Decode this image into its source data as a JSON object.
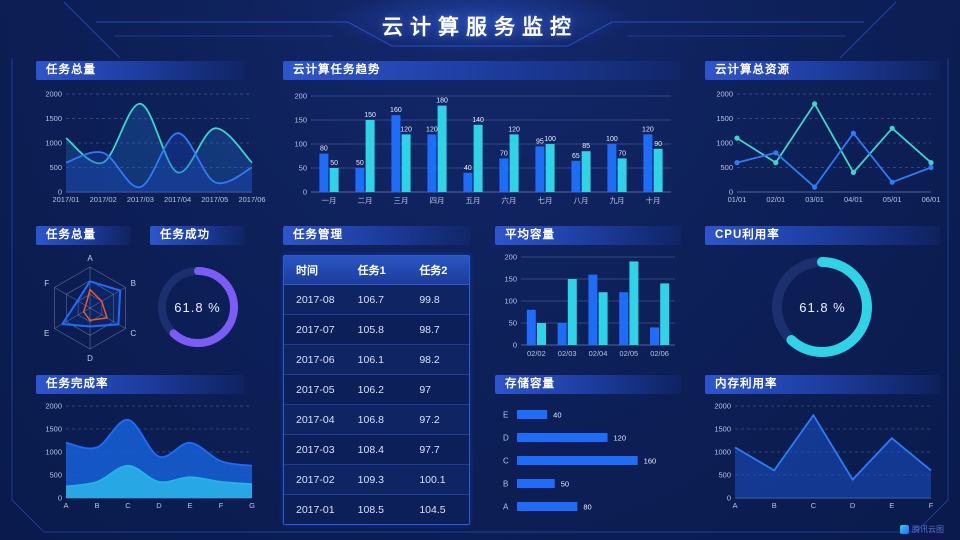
{
  "header": {
    "title": "云计算服务监控"
  },
  "watermark": {
    "label": "腾讯云图"
  },
  "colors": {
    "accent_blue": "#1f6cf9",
    "accent_cyan": "#2fd3e6",
    "accent_teal": "#3bd6c9",
    "accent_purple": "#7b5cf7",
    "accent_orange": "#f2552c",
    "panel_title_bg": "#2e55cc",
    "background": "#0d2058",
    "frame_line": "#2b4fd4"
  },
  "panels": {
    "task_total_top": {
      "title": "任务总量"
    },
    "task_trend": {
      "title": "云计算任务趋势"
    },
    "total_resources": {
      "title": "云计算总资源"
    },
    "task_radar": {
      "title": "任务总量"
    },
    "task_success": {
      "title": "任务成功"
    },
    "task_management": {
      "title": "任务管理",
      "columns": [
        "时间",
        "任务1",
        "任务2"
      ],
      "rows": [
        [
          "2017-08",
          "106.7",
          "99.8"
        ],
        [
          "2017-07",
          "105.8",
          "98.7"
        ],
        [
          "2017-06",
          "106.1",
          "98.2"
        ],
        [
          "2017-05",
          "106.2",
          "97"
        ],
        [
          "2017-04",
          "106.8",
          "97.2"
        ],
        [
          "2017-03",
          "108.4",
          "97.7"
        ],
        [
          "2017-02",
          "109.3",
          "100.1"
        ],
        [
          "2017-01",
          "108.5",
          "104.5"
        ]
      ]
    },
    "avg_capacity": {
      "title": "平均容量"
    },
    "cpu": {
      "title": "CPU利用率"
    },
    "task_completion": {
      "title": "任务完成率"
    },
    "storage": {
      "title": "存储容量"
    },
    "memory": {
      "title": "内存利用率"
    }
  },
  "chart_data": [
    {
      "id": "task_total_top",
      "type": "smooth_area",
      "title": "任务总量",
      "x": [
        "2017/01",
        "2017/02",
        "2017/03",
        "2017/04",
        "2017/05",
        "2017/06"
      ],
      "ylim": [
        0,
        2000
      ],
      "yticks": [
        0,
        500,
        1000,
        1500,
        2000
      ],
      "grid": "dashed",
      "series": [
        {
          "name": "teal",
          "color": "#3bd6c9",
          "fill": "rgba(35,120,210,0.28)",
          "values": [
            1100,
            600,
            1800,
            400,
            1300,
            600
          ]
        },
        {
          "name": "blue",
          "color": "#2f7bf5",
          "fill": "rgba(25,70,190,0.34)",
          "values": [
            600,
            800,
            100,
            1200,
            200,
            500
          ]
        }
      ]
    },
    {
      "id": "task_trend",
      "type": "bar",
      "title": "云计算任务趋势",
      "categories": [
        "一月",
        "二月",
        "三月",
        "四月",
        "五月",
        "六月",
        "七月",
        "八月",
        "九月",
        "十月"
      ],
      "ylim": [
        0,
        200
      ],
      "yticks": [
        0,
        50,
        100,
        150,
        200
      ],
      "show_values": true,
      "series": [
        {
          "name": "blue",
          "color": "#1f6cf9",
          "values": [
            80,
            50,
            160,
            120,
            40,
            70,
            95,
            65,
            100,
            120
          ]
        },
        {
          "name": "cyan",
          "color": "#2fd3e6",
          "values": [
            50,
            150,
            120,
            180,
            140,
            120,
            100,
            85,
            70,
            90
          ]
        }
      ]
    },
    {
      "id": "total_resources",
      "type": "line",
      "title": "云计算总资源",
      "x": [
        "01/01",
        "02/01",
        "03/01",
        "04/01",
        "05/01",
        "06/01"
      ],
      "ylim": [
        0,
        2000
      ],
      "yticks": [
        0,
        500,
        1000,
        1500,
        2000
      ],
      "markers": true,
      "grid": "dashed",
      "series": [
        {
          "name": "teal",
          "color": "#3bd6c9",
          "values": [
            1100,
            600,
            1800,
            400,
            1300,
            600
          ]
        },
        {
          "name": "blue",
          "color": "#2f7bf5",
          "values": [
            600,
            800,
            100,
            1200,
            200,
            500
          ]
        }
      ]
    },
    {
      "id": "task_radar",
      "type": "radar",
      "title": "任务总量",
      "axes": [
        "A",
        "B",
        "C",
        "D",
        "E",
        "F"
      ],
      "max": 100,
      "series": [
        {
          "name": "blue",
          "color": "#1f6cf9",
          "values": [
            65,
            85,
            80,
            45,
            78,
            35
          ]
        },
        {
          "name": "orange",
          "color": "#f2552c",
          "values": [
            45,
            33,
            48,
            30,
            18,
            12
          ]
        }
      ]
    },
    {
      "id": "task_success_gauge",
      "type": "gauge",
      "title": "任务成功",
      "value": 61.8,
      "display": "61.8 %",
      "color": "#7b5cf7",
      "track": "#1c2f6e"
    },
    {
      "id": "avg_capacity",
      "type": "bar",
      "title": "平均容量",
      "categories": [
        "02/02",
        "02/03",
        "02/04",
        "02/05",
        "02/06"
      ],
      "ylim": [
        0,
        200
      ],
      "yticks": [
        0,
        50,
        100,
        150,
        200
      ],
      "show_values": false,
      "series": [
        {
          "name": "blue",
          "color": "#1f6cf9",
          "values": [
            80,
            50,
            160,
            120,
            40
          ]
        },
        {
          "name": "cyan",
          "color": "#2fd3e6",
          "values": [
            50,
            150,
            120,
            190,
            140
          ]
        }
      ]
    },
    {
      "id": "cpu_gauge",
      "type": "gauge",
      "title": "CPU利用率",
      "value": 61.8,
      "display": "61.8 %",
      "color": "#2fd3e6",
      "track": "#1c2f6e"
    },
    {
      "id": "task_completion",
      "type": "smooth_area",
      "title": "任务完成率",
      "x": [
        "A",
        "B",
        "C",
        "D",
        "E",
        "F",
        "G"
      ],
      "ylim": [
        0,
        2000
      ],
      "yticks": [
        0,
        500,
        1000,
        1500,
        2000
      ],
      "grid": "dashed",
      "series": [
        {
          "name": "blue",
          "color": "#1f6cf9",
          "fill": "rgba(22,96,216,0.85)",
          "values": [
            1200,
            1100,
            1700,
            900,
            1200,
            800,
            700
          ]
        },
        {
          "name": "cyan",
          "color": "#29b1e8",
          "fill": "rgba(41,177,232,0.9)",
          "values": [
            250,
            350,
            700,
            350,
            450,
            350,
            300
          ]
        }
      ]
    },
    {
      "id": "storage",
      "type": "hbar",
      "title": "存储容量",
      "categories": [
        "E",
        "D",
        "C",
        "B",
        "A"
      ],
      "values": [
        40,
        120,
        160,
        50,
        80
      ],
      "xmax": 175,
      "color": "#1f6cf9",
      "show_values": true
    },
    {
      "id": "memory",
      "type": "line",
      "title": "内存利用率",
      "x": [
        "A",
        "B",
        "C",
        "D",
        "E",
        "F"
      ],
      "ylim": [
        0,
        2000
      ],
      "yticks": [
        0,
        500,
        1000,
        1500,
        2000
      ],
      "markers": false,
      "grid": "dashed",
      "series": [
        {
          "name": "blue",
          "color": "#2f7bf5",
          "fill": "rgba(28,80,200,0.55)",
          "values": [
            1100,
            600,
            1800,
            400,
            1300,
            600
          ]
        }
      ]
    }
  ]
}
